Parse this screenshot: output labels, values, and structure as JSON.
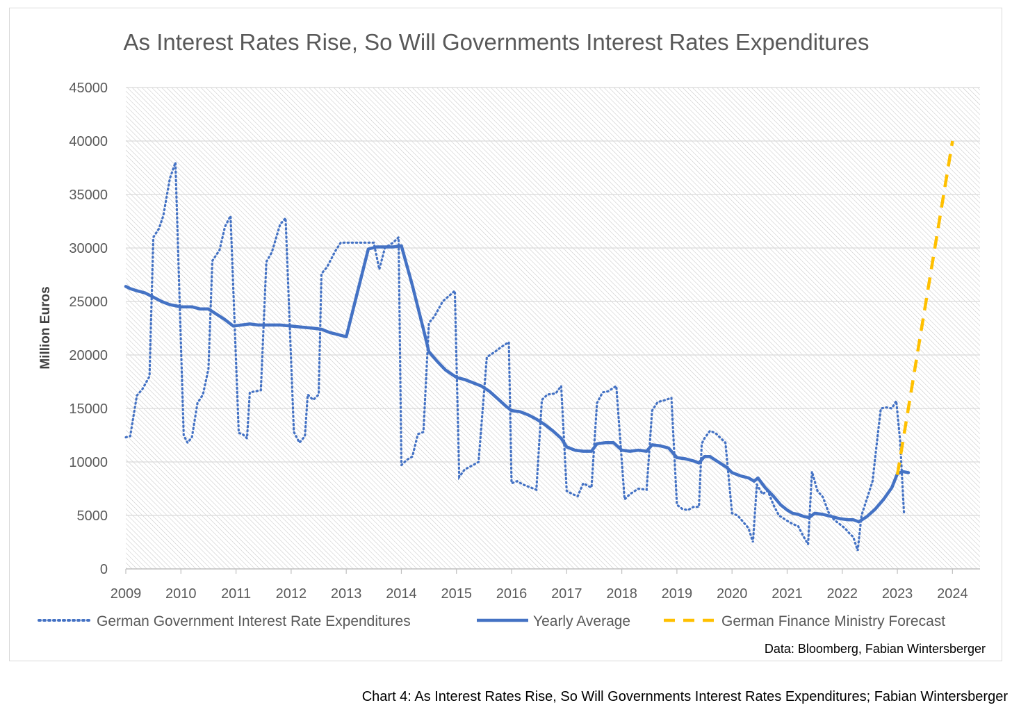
{
  "chart_data": {
    "type": "line",
    "title": "As Interest Rates Rise, So Will Governments Interest Rates Expenditures",
    "xlabel": "",
    "ylabel": "Million Euros",
    "ylim": [
      0,
      45000
    ],
    "xlim": [
      2009,
      2024.5
    ],
    "y_ticks": [
      0,
      5000,
      10000,
      15000,
      20000,
      25000,
      30000,
      35000,
      40000,
      45000
    ],
    "x_ticks": [
      "2009",
      "2010",
      "2011",
      "2012",
      "2013",
      "2014",
      "2015",
      "2016",
      "2017",
      "2018",
      "2019",
      "2020",
      "2021",
      "2022",
      "2023",
      "2024"
    ],
    "grid": true,
    "legend_position": "bottom",
    "source_note": "Data: Bloomberg, Fabian Wintersberger",
    "series": [
      {
        "name": "German Government Interest Rate Expenditures",
        "style": "dotted",
        "color": "#4472c4",
        "points": [
          [
            2009.0,
            12300
          ],
          [
            2009.08,
            12400
          ],
          [
            2009.2,
            16200
          ],
          [
            2009.3,
            16800
          ],
          [
            2009.43,
            18000
          ],
          [
            2009.5,
            31000
          ],
          [
            2009.6,
            31800
          ],
          [
            2009.68,
            33000
          ],
          [
            2009.8,
            36500
          ],
          [
            2009.9,
            38000
          ],
          [
            2010.05,
            12500
          ],
          [
            2010.12,
            11800
          ],
          [
            2010.2,
            12300
          ],
          [
            2010.3,
            15500
          ],
          [
            2010.4,
            16300
          ],
          [
            2010.5,
            18700
          ],
          [
            2010.57,
            28800
          ],
          [
            2010.7,
            29800
          ],
          [
            2010.8,
            32000
          ],
          [
            2010.9,
            33000
          ],
          [
            2011.05,
            12700
          ],
          [
            2011.12,
            12600
          ],
          [
            2011.2,
            12200
          ],
          [
            2011.25,
            16500
          ],
          [
            2011.35,
            16600
          ],
          [
            2011.45,
            16700
          ],
          [
            2011.55,
            28700
          ],
          [
            2011.65,
            29600
          ],
          [
            2011.8,
            32200
          ],
          [
            2011.9,
            32800
          ],
          [
            2012.05,
            12800
          ],
          [
            2012.15,
            11800
          ],
          [
            2012.25,
            12400
          ],
          [
            2012.3,
            16300
          ],
          [
            2012.4,
            15800
          ],
          [
            2012.5,
            16300
          ],
          [
            2012.55,
            27600
          ],
          [
            2012.65,
            28200
          ],
          [
            2012.8,
            29700
          ],
          [
            2012.9,
            30500
          ],
          [
            2013.0,
            30500
          ],
          [
            2013.2,
            30500
          ],
          [
            2013.4,
            30500
          ],
          [
            2013.5,
            30500
          ],
          [
            2013.6,
            28000
          ],
          [
            2013.7,
            30000
          ],
          [
            2013.85,
            30500
          ],
          [
            2013.95,
            31000
          ],
          [
            2014.0,
            9700
          ],
          [
            2014.1,
            10200
          ],
          [
            2014.2,
            10500
          ],
          [
            2014.3,
            12600
          ],
          [
            2014.4,
            12800
          ],
          [
            2014.5,
            23000
          ],
          [
            2014.6,
            23600
          ],
          [
            2014.75,
            25000
          ],
          [
            2014.97,
            26000
          ],
          [
            2015.05,
            8600
          ],
          [
            2015.15,
            9300
          ],
          [
            2015.3,
            9700
          ],
          [
            2015.4,
            10000
          ],
          [
            2015.55,
            19800
          ],
          [
            2015.7,
            20300
          ],
          [
            2015.8,
            20700
          ],
          [
            2015.95,
            21200
          ],
          [
            2016.0,
            8000
          ],
          [
            2016.1,
            8200
          ],
          [
            2016.2,
            7900
          ],
          [
            2016.3,
            7700
          ],
          [
            2016.45,
            7400
          ],
          [
            2016.55,
            15800
          ],
          [
            2016.65,
            16300
          ],
          [
            2016.8,
            16400
          ],
          [
            2016.9,
            17100
          ],
          [
            2017.0,
            7300
          ],
          [
            2017.1,
            7000
          ],
          [
            2017.2,
            6800
          ],
          [
            2017.3,
            8000
          ],
          [
            2017.45,
            7600
          ],
          [
            2017.55,
            15500
          ],
          [
            2017.65,
            16500
          ],
          [
            2017.75,
            16600
          ],
          [
            2017.9,
            17100
          ],
          [
            2018.05,
            6500
          ],
          [
            2018.15,
            7000
          ],
          [
            2018.3,
            7500
          ],
          [
            2018.45,
            7400
          ],
          [
            2018.55,
            14800
          ],
          [
            2018.65,
            15600
          ],
          [
            2018.8,
            15800
          ],
          [
            2018.9,
            16000
          ],
          [
            2019.0,
            6000
          ],
          [
            2019.1,
            5600
          ],
          [
            2019.2,
            5500
          ],
          [
            2019.3,
            5800
          ],
          [
            2019.4,
            5800
          ],
          [
            2019.45,
            11700
          ],
          [
            2019.5,
            12200
          ],
          [
            2019.6,
            12900
          ],
          [
            2019.7,
            12700
          ],
          [
            2019.8,
            12200
          ],
          [
            2019.88,
            11800
          ],
          [
            2020.0,
            5200
          ],
          [
            2020.1,
            5000
          ],
          [
            2020.2,
            4400
          ],
          [
            2020.3,
            3800
          ],
          [
            2020.38,
            2500
          ],
          [
            2020.45,
            7900
          ],
          [
            2020.55,
            7000
          ],
          [
            2020.65,
            7300
          ],
          [
            2020.75,
            6000
          ],
          [
            2020.85,
            5000
          ],
          [
            2021.0,
            4500
          ],
          [
            2021.1,
            4200
          ],
          [
            2021.2,
            4000
          ],
          [
            2021.3,
            3000
          ],
          [
            2021.38,
            2300
          ],
          [
            2021.45,
            9100
          ],
          [
            2021.55,
            7300
          ],
          [
            2021.65,
            6700
          ],
          [
            2021.75,
            5300
          ],
          [
            2021.85,
            4600
          ],
          [
            2021.95,
            4200
          ],
          [
            2022.05,
            3800
          ],
          [
            2022.15,
            3200
          ],
          [
            2022.2,
            3000
          ],
          [
            2022.28,
            1700
          ],
          [
            2022.35,
            5000
          ],
          [
            2022.45,
            6600
          ],
          [
            2022.55,
            8200
          ],
          [
            2022.65,
            12800
          ],
          [
            2022.7,
            15000
          ],
          [
            2022.8,
            15100
          ],
          [
            2022.9,
            15000
          ],
          [
            2022.98,
            15700
          ],
          [
            2023.05,
            12000
          ],
          [
            2023.12,
            5200
          ]
        ]
      },
      {
        "name": "Yearly Average",
        "style": "solid",
        "color": "#4472c4",
        "points": [
          [
            2009.0,
            26400
          ],
          [
            2009.08,
            26200
          ],
          [
            2009.2,
            26000
          ],
          [
            2009.35,
            25800
          ],
          [
            2009.5,
            25400
          ],
          [
            2009.65,
            25000
          ],
          [
            2009.8,
            24700
          ],
          [
            2010.0,
            24500
          ],
          [
            2010.2,
            24500
          ],
          [
            2010.35,
            24300
          ],
          [
            2010.5,
            24300
          ],
          [
            2010.65,
            23800
          ],
          [
            2010.8,
            23300
          ],
          [
            2010.95,
            22700
          ],
          [
            2011.1,
            22800
          ],
          [
            2011.25,
            22900
          ],
          [
            2011.4,
            22800
          ],
          [
            2011.6,
            22800
          ],
          [
            2011.8,
            22800
          ],
          [
            2012.0,
            22700
          ],
          [
            2012.2,
            22600
          ],
          [
            2012.4,
            22500
          ],
          [
            2012.55,
            22400
          ],
          [
            2012.7,
            22100
          ],
          [
            2012.85,
            21900
          ],
          [
            2013.0,
            21700
          ],
          [
            2013.2,
            25800
          ],
          [
            2013.4,
            29900
          ],
          [
            2013.55,
            30100
          ],
          [
            2013.7,
            30100
          ],
          [
            2013.85,
            30100
          ],
          [
            2014.0,
            30200
          ],
          [
            2014.2,
            26500
          ],
          [
            2014.4,
            22400
          ],
          [
            2014.5,
            20300
          ],
          [
            2014.65,
            19400
          ],
          [
            2014.8,
            18600
          ],
          [
            2015.0,
            17900
          ],
          [
            2015.15,
            17700
          ],
          [
            2015.3,
            17400
          ],
          [
            2015.45,
            17100
          ],
          [
            2015.6,
            16600
          ],
          [
            2015.75,
            15900
          ],
          [
            2015.9,
            15200
          ],
          [
            2016.0,
            14800
          ],
          [
            2016.15,
            14700
          ],
          [
            2016.3,
            14400
          ],
          [
            2016.45,
            14000
          ],
          [
            2016.6,
            13500
          ],
          [
            2016.75,
            12900
          ],
          [
            2016.9,
            12200
          ],
          [
            2017.0,
            11400
          ],
          [
            2017.15,
            11100
          ],
          [
            2017.3,
            11000
          ],
          [
            2017.45,
            11000
          ],
          [
            2017.55,
            11700
          ],
          [
            2017.7,
            11800
          ],
          [
            2017.85,
            11800
          ],
          [
            2018.0,
            11100
          ],
          [
            2018.15,
            11000
          ],
          [
            2018.3,
            11100
          ],
          [
            2018.45,
            11000
          ],
          [
            2018.55,
            11600
          ],
          [
            2018.7,
            11500
          ],
          [
            2018.85,
            11300
          ],
          [
            2019.0,
            10400
          ],
          [
            2019.15,
            10300
          ],
          [
            2019.3,
            10100
          ],
          [
            2019.4,
            9900
          ],
          [
            2019.5,
            10500
          ],
          [
            2019.6,
            10500
          ],
          [
            2019.75,
            10000
          ],
          [
            2019.9,
            9500
          ],
          [
            2020.0,
            9000
          ],
          [
            2020.15,
            8700
          ],
          [
            2020.3,
            8500
          ],
          [
            2020.4,
            8200
          ],
          [
            2020.47,
            8500
          ],
          [
            2020.6,
            7600
          ],
          [
            2020.75,
            6800
          ],
          [
            2020.88,
            6000
          ],
          [
            2021.0,
            5500
          ],
          [
            2021.1,
            5200
          ],
          [
            2021.2,
            5100
          ],
          [
            2021.3,
            4900
          ],
          [
            2021.4,
            4800
          ],
          [
            2021.5,
            5200
          ],
          [
            2021.65,
            5100
          ],
          [
            2021.8,
            4900
          ],
          [
            2021.95,
            4700
          ],
          [
            2022.1,
            4600
          ],
          [
            2022.2,
            4600
          ],
          [
            2022.3,
            4400
          ],
          [
            2022.45,
            4900
          ],
          [
            2022.6,
            5600
          ],
          [
            2022.75,
            6500
          ],
          [
            2022.9,
            7600
          ],
          [
            2023.0,
            8900
          ],
          [
            2023.1,
            9100
          ],
          [
            2023.2,
            9000
          ]
        ]
      },
      {
        "name": "German Finance Ministry Forecast",
        "style": "dashed",
        "color": "#ffc000",
        "points": [
          [
            2023.0,
            8800
          ],
          [
            2024.0,
            40000
          ]
        ]
      }
    ]
  }
}
